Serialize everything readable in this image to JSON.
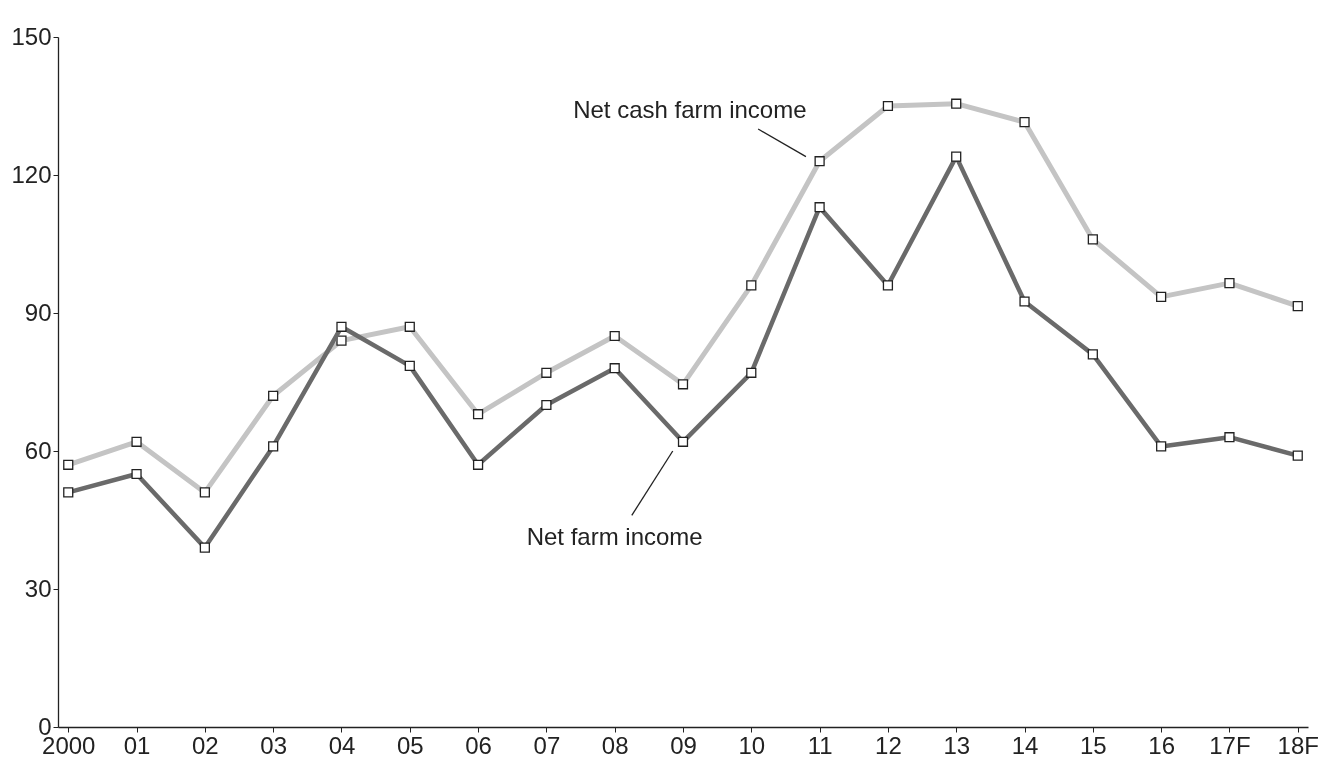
{
  "chart_data": {
    "type": "line",
    "categories": [
      "2000",
      "01",
      "02",
      "03",
      "04",
      "05",
      "06",
      "07",
      "08",
      "09",
      "10",
      "11",
      "12",
      "13",
      "14",
      "15",
      "16",
      "17F",
      "18F"
    ],
    "series": [
      {
        "name": "Net cash farm income",
        "color": "#c4c4c4",
        "values": [
          57,
          62,
          51,
          72,
          84,
          87,
          68,
          77,
          85,
          74.5,
          96,
          123,
          135,
          135.5,
          131.5,
          106,
          93.5,
          96.5,
          91.5
        ]
      },
      {
        "name": "Net farm income",
        "color": "#6a6a6a",
        "values": [
          51,
          55,
          39,
          61,
          87,
          78.5,
          57,
          70,
          78,
          62,
          77,
          113,
          96,
          124,
          92.5,
          81,
          61,
          63,
          59
        ]
      }
    ],
    "ylim": [
      0,
      150
    ],
    "yticks": [
      0,
      30,
      60,
      90,
      120,
      150
    ],
    "grid": false,
    "marker": "square",
    "line_style": "solid"
  }
}
